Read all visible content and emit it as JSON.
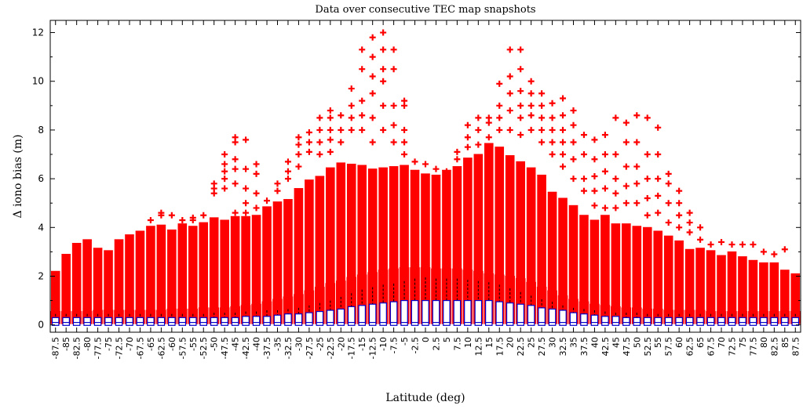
{
  "chart_data": {
    "type": "box",
    "title": "Data over consecutive TEC map snapshots",
    "xlabel": "Latitude (deg)",
    "ylabel": "Δ iono bias (m)",
    "ylim": [
      -0.3,
      12.5
    ],
    "yticks": [
      0,
      2,
      4,
      6,
      8,
      10,
      12
    ],
    "grid": false,
    "x": [
      -87.5,
      -85,
      -82.5,
      -80,
      -77.5,
      -75,
      -72.5,
      -70,
      -67.5,
      -65,
      -62.5,
      -60,
      -57.5,
      -55,
      -52.5,
      -50,
      -47.5,
      -45,
      -42.5,
      -40,
      -37.5,
      -35,
      -32.5,
      -30,
      -27.5,
      -25,
      -22.5,
      -20,
      -17.5,
      -15,
      -12.5,
      -10,
      -7.5,
      -5,
      -2.5,
      0,
      2.5,
      5,
      7.5,
      10,
      12.5,
      15,
      17.5,
      20,
      22.5,
      25,
      27.5,
      30,
      32.5,
      35,
      37.5,
      40,
      42.5,
      45,
      47.5,
      50,
      52.5,
      55,
      57.5,
      60,
      62.5,
      65,
      67.5,
      70,
      72.5,
      75,
      77.5,
      80,
      82.5,
      85,
      87.5
    ],
    "xtick_labels": [
      "-87.5",
      "-85",
      "-82.5",
      "-80",
      "-77.5",
      "-75",
      "-72.5",
      "-70",
      "-67.5",
      "-65",
      "-62.5",
      "-60",
      "-57.5",
      "-55",
      "-52.5",
      "-50",
      "-47.5",
      "-45",
      "-42.5",
      "-40",
      "-37.5",
      "-35",
      "-32.5",
      "-30",
      "-27.5",
      "-25",
      "-22.5",
      "-20",
      "-17.5",
      "-15",
      "-12.5",
      "-10",
      "-7.5",
      "-5",
      "-2.5",
      "0",
      "2.5",
      "5",
      "7.5",
      "10",
      "12.5",
      "15",
      "17.5",
      "20",
      "22.5",
      "25",
      "27.5",
      "30",
      "32.5",
      "35",
      "37.5",
      "40",
      "42.5",
      "45",
      "47.5",
      "50",
      "52.5",
      "55",
      "57.5",
      "60",
      "62.5",
      "65",
      "67.5",
      "70",
      "72.5",
      "75",
      "77.5",
      "80",
      "82.5",
      "85",
      "87.5"
    ],
    "series": [
      {
        "color": "#ff0000",
        "max": [
          2.2,
          2.9,
          3.35,
          3.5,
          3.15,
          3.05,
          3.5,
          3.7,
          3.85,
          4.05,
          4.1,
          3.9,
          4.15,
          4.05,
          4.2,
          4.4,
          4.3,
          4.45,
          4.45,
          4.5,
          4.85,
          5.05,
          5.15,
          5.6,
          5.95,
          6.1,
          6.45,
          6.65,
          6.6,
          6.55,
          6.4,
          6.45,
          6.5,
          6.55,
          6.35,
          6.2,
          6.15,
          6.35,
          6.5,
          6.85,
          7.0,
          7.45,
          7.3,
          6.95,
          6.7,
          6.45,
          6.15,
          5.45,
          5.2,
          4.9,
          4.5,
          4.3,
          4.5,
          4.15,
          4.15,
          4.05,
          4.0,
          3.85,
          3.65,
          3.45,
          3.1,
          3.15,
          3.05,
          2.85,
          3.0,
          2.8,
          2.65,
          2.55,
          2.55,
          2.25,
          2.1
        ],
        "q3": [
          0.55,
          0.55,
          0.55,
          0.55,
          0.6,
          0.6,
          0.6,
          0.6,
          0.6,
          0.6,
          0.6,
          0.65,
          0.65,
          0.65,
          0.7,
          0.7,
          0.7,
          0.75,
          0.8,
          0.85,
          0.95,
          1.05,
          1.15,
          1.25,
          1.4,
          1.55,
          1.7,
          1.8,
          1.95,
          2.05,
          2.15,
          2.25,
          2.3,
          2.35,
          2.35,
          2.35,
          2.3,
          2.3,
          2.3,
          2.25,
          2.2,
          2.1,
          2.05,
          2.0,
          1.9,
          1.75,
          1.55,
          1.4,
          1.2,
          1.05,
          0.95,
          0.85,
          0.8,
          0.75,
          0.7,
          0.7,
          0.65,
          0.65,
          0.6,
          0.6,
          0.6,
          0.6,
          0.55,
          0.55,
          0.55,
          0.55,
          0.55,
          0.55,
          0.55,
          0.55,
          0.55
        ],
        "median": [
          0.05,
          0.05,
          0.05,
          0.05,
          0.05,
          0.05,
          0.05,
          0.05,
          0.05,
          0.05,
          0.05,
          0.05,
          0.05,
          0.05,
          0.05,
          0.05,
          0.05,
          0.05,
          0.05,
          0.05,
          0.05,
          0.05,
          0.05,
          0.05,
          0.05,
          0.05,
          0.05,
          0.05,
          0.05,
          0.05,
          0.05,
          0.05,
          0.05,
          0.05,
          0.05,
          0.05,
          0.05,
          0.05,
          0.05,
          0.05,
          0.05,
          0.05,
          0.05,
          0.05,
          0.05,
          0.05,
          0.05,
          0.05,
          0.05,
          0.05,
          0.05,
          0.05,
          0.05,
          0.05,
          0.05,
          0.05,
          0.05,
          0.05,
          0.05,
          0.05,
          0.05,
          0.05,
          0.05,
          0.05,
          0.05,
          0.05,
          0.05,
          0.05,
          0.05,
          0.05,
          0.05
        ],
        "outliers": [
          [],
          [],
          [],
          [],
          [],
          [],
          [],
          [],
          [],
          [
            4.3
          ],
          [
            4.5,
            4.6
          ],
          [
            4.5
          ],
          [
            4.3
          ],
          [
            4.3,
            4.4
          ],
          [
            4.5
          ],
          [
            5.4,
            5.6,
            5.8
          ],
          [
            5.6,
            6.0,
            6.3,
            6.6,
            7.0
          ],
          [
            4.6,
            5.8,
            6.4,
            6.8,
            7.5,
            7.7
          ],
          [
            4.6,
            5.0,
            5.6,
            6.4,
            7.6
          ],
          [
            4.8,
            5.4,
            6.2,
            6.6
          ],
          [
            5.1
          ],
          [
            5.5,
            5.8
          ],
          [
            6.0,
            6.3,
            6.7
          ],
          [
            6.5,
            7.0,
            7.4,
            7.7
          ],
          [
            7.1,
            7.5,
            7.9
          ],
          [
            7.0,
            7.5,
            8.0,
            8.5
          ],
          [
            7.1,
            7.6,
            8.0,
            8.5,
            8.8
          ],
          [
            7.5,
            8.0,
            8.6
          ],
          [
            8.0,
            8.5,
            9.0,
            9.7
          ],
          [
            8.0,
            8.6,
            9.2,
            10.5,
            11.3
          ],
          [
            7.5,
            8.5,
            9.5,
            10.2,
            11.0,
            11.8
          ],
          [
            8.0,
            9.0,
            10.0,
            10.5,
            11.3,
            12.0
          ],
          [
            7.5,
            8.2,
            9.0,
            10.5,
            11.3
          ],
          [
            7.0,
            7.5,
            8.0,
            9.0,
            9.2
          ],
          [
            6.7
          ],
          [
            6.6
          ],
          [
            6.4
          ],
          [
            6.3
          ],
          [
            6.8,
            7.1
          ],
          [
            7.3,
            7.7,
            8.2
          ],
          [
            7.4,
            8.0,
            8.5
          ],
          [
            7.7,
            8.3,
            8.5
          ],
          [
            8.0,
            8.5,
            9.0,
            9.9
          ],
          [
            8.0,
            8.8,
            9.5,
            10.2,
            11.3
          ],
          [
            7.8,
            8.5,
            9.0,
            9.6,
            10.5,
            11.3
          ],
          [
            8.0,
            8.6,
            9.0,
            9.5,
            10.0
          ],
          [
            7.5,
            8.0,
            8.5,
            9.0,
            9.5
          ],
          [
            7.0,
            7.5,
            8.0,
            8.5,
            9.1
          ],
          [
            6.5,
            7.0,
            7.5,
            8.0,
            8.6,
            9.3
          ],
          [
            6.0,
            6.8,
            7.5,
            8.2,
            8.8
          ],
          [
            5.5,
            6.0,
            7.0,
            7.8
          ],
          [
            4.9,
            5.5,
            6.1,
            6.8,
            7.6
          ],
          [
            4.8,
            5.6,
            6.3,
            7.0,
            7.8
          ],
          [
            4.8,
            5.4,
            6.0,
            7.0,
            8.5
          ],
          [
            5.0,
            5.7,
            6.5,
            7.5,
            8.3
          ],
          [
            5.0,
            5.8,
            6.5,
            7.5,
            8.6
          ],
          [
            4.5,
            5.2,
            6.0,
            7.0,
            8.5
          ],
          [
            4.6,
            5.3,
            6.0,
            7.0,
            8.1
          ],
          [
            4.2,
            5.0,
            5.8,
            6.2
          ],
          [
            4.0,
            4.5,
            5.0,
            5.5
          ],
          [
            3.8,
            4.2,
            4.6
          ],
          [
            3.5,
            4.0
          ],
          [
            3.3
          ],
          [
            3.4
          ],
          [
            3.3
          ],
          [
            3.3
          ],
          [
            3.3
          ],
          [
            3.0
          ],
          [
            2.9
          ],
          [
            3.1
          ],
          [],
          []
        ]
      },
      {
        "color": "#0000cc",
        "max": [
          0.45,
          0.45,
          0.45,
          0.45,
          0.45,
          0.45,
          0.45,
          0.45,
          0.45,
          0.45,
          0.45,
          0.45,
          0.45,
          0.45,
          0.45,
          0.5,
          0.5,
          0.5,
          0.55,
          0.55,
          0.6,
          0.6,
          0.65,
          0.7,
          0.8,
          0.9,
          1.0,
          1.15,
          1.3,
          1.45,
          1.55,
          1.65,
          1.7,
          1.8,
          1.9,
          1.95,
          1.9,
          1.9,
          1.9,
          1.85,
          1.8,
          1.75,
          1.65,
          1.5,
          1.35,
          1.2,
          1.05,
          0.95,
          0.8,
          0.7,
          0.65,
          0.6,
          0.55,
          0.5,
          0.5,
          0.5,
          0.45,
          0.45,
          0.45,
          0.45,
          0.45,
          0.45,
          0.45,
          0.45,
          0.45,
          0.45,
          0.45,
          0.45,
          0.45,
          0.45,
          0.45
        ],
        "q3": [
          0.3,
          0.3,
          0.3,
          0.3,
          0.3,
          0.3,
          0.3,
          0.3,
          0.3,
          0.3,
          0.3,
          0.3,
          0.3,
          0.3,
          0.3,
          0.3,
          0.3,
          0.3,
          0.35,
          0.35,
          0.35,
          0.4,
          0.45,
          0.45,
          0.5,
          0.55,
          0.6,
          0.65,
          0.75,
          0.8,
          0.85,
          0.9,
          0.95,
          1.0,
          1.0,
          1.0,
          1.0,
          1.0,
          1.0,
          1.0,
          1.0,
          1.0,
          0.95,
          0.9,
          0.85,
          0.8,
          0.7,
          0.65,
          0.6,
          0.5,
          0.45,
          0.4,
          0.35,
          0.35,
          0.3,
          0.3,
          0.3,
          0.3,
          0.3,
          0.3,
          0.3,
          0.3,
          0.3,
          0.3,
          0.3,
          0.3,
          0.3,
          0.3,
          0.3,
          0.3,
          0.3
        ],
        "median": [
          0.1,
          0.1,
          0.1,
          0.1,
          0.1,
          0.1,
          0.1,
          0.1,
          0.1,
          0.1,
          0.1,
          0.1,
          0.1,
          0.1,
          0.1,
          0.1,
          0.1,
          0.1,
          0.1,
          0.1,
          0.1,
          0.1,
          0.1,
          0.1,
          0.1,
          0.1,
          0.1,
          0.1,
          0.1,
          0.1,
          0.1,
          0.1,
          0.1,
          0.1,
          0.1,
          0.1,
          0.1,
          0.1,
          0.1,
          0.1,
          0.1,
          0.1,
          0.1,
          0.1,
          0.1,
          0.1,
          0.1,
          0.1,
          0.1,
          0.1,
          0.1,
          0.1,
          0.1,
          0.1,
          0.1,
          0.1,
          0.1,
          0.1,
          0.1,
          0.1,
          0.1,
          0.1,
          0.1,
          0.1,
          0.1,
          0.1,
          0.1,
          0.1,
          0.1,
          0.1,
          0.1
        ],
        "outliers": []
      }
    ]
  }
}
